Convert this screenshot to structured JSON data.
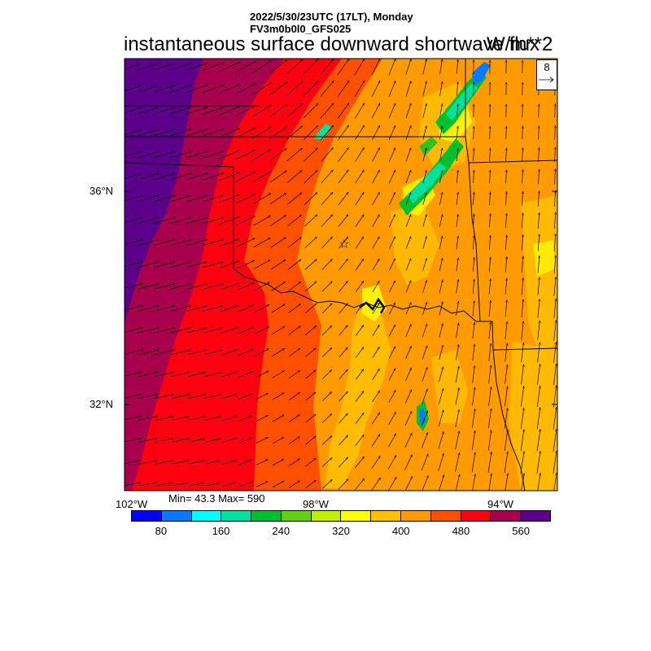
{
  "header": {
    "line1": "2022/5/30/23UTC (17LT), Monday",
    "line2": "FV3m0b0l0_GFS025",
    "title": "instantaneous surface downward shortwave flux",
    "units": "W/m**2"
  },
  "reference_vector": {
    "value": "8"
  },
  "axes": {
    "lat_labels": [
      "36°N",
      "32°N"
    ],
    "lon_labels": [
      "102°W",
      "98°W",
      "94°W"
    ]
  },
  "stats": {
    "text": "Min= 43.3 Max= 590"
  },
  "colorbar": {
    "colors": [
      "#0000ff",
      "#0a78ff",
      "#00ffff",
      "#00e0a0",
      "#00c030",
      "#60d010",
      "#c0f000",
      "#ffff00",
      "#ffc000",
      "#ff9b00",
      "#ff5000",
      "#ff0010",
      "#a8004c",
      "#5c008c"
    ],
    "labels": [
      "80",
      "160",
      "240",
      "320",
      "400",
      "480",
      "560"
    ]
  },
  "map": {
    "field_colors": {
      "purple": "#5c008c",
      "magenta": "#a8004c",
      "red": "#ff0010",
      "red_orange": "#ff5000",
      "orange": "#ff9b00",
      "amber": "#ffc000",
      "yellow": "#ffff00",
      "green": "#00c030",
      "teal": "#00e0a0",
      "blue": "#0a78ff"
    },
    "state_markers": {
      "star_symbol": "☆"
    }
  }
}
